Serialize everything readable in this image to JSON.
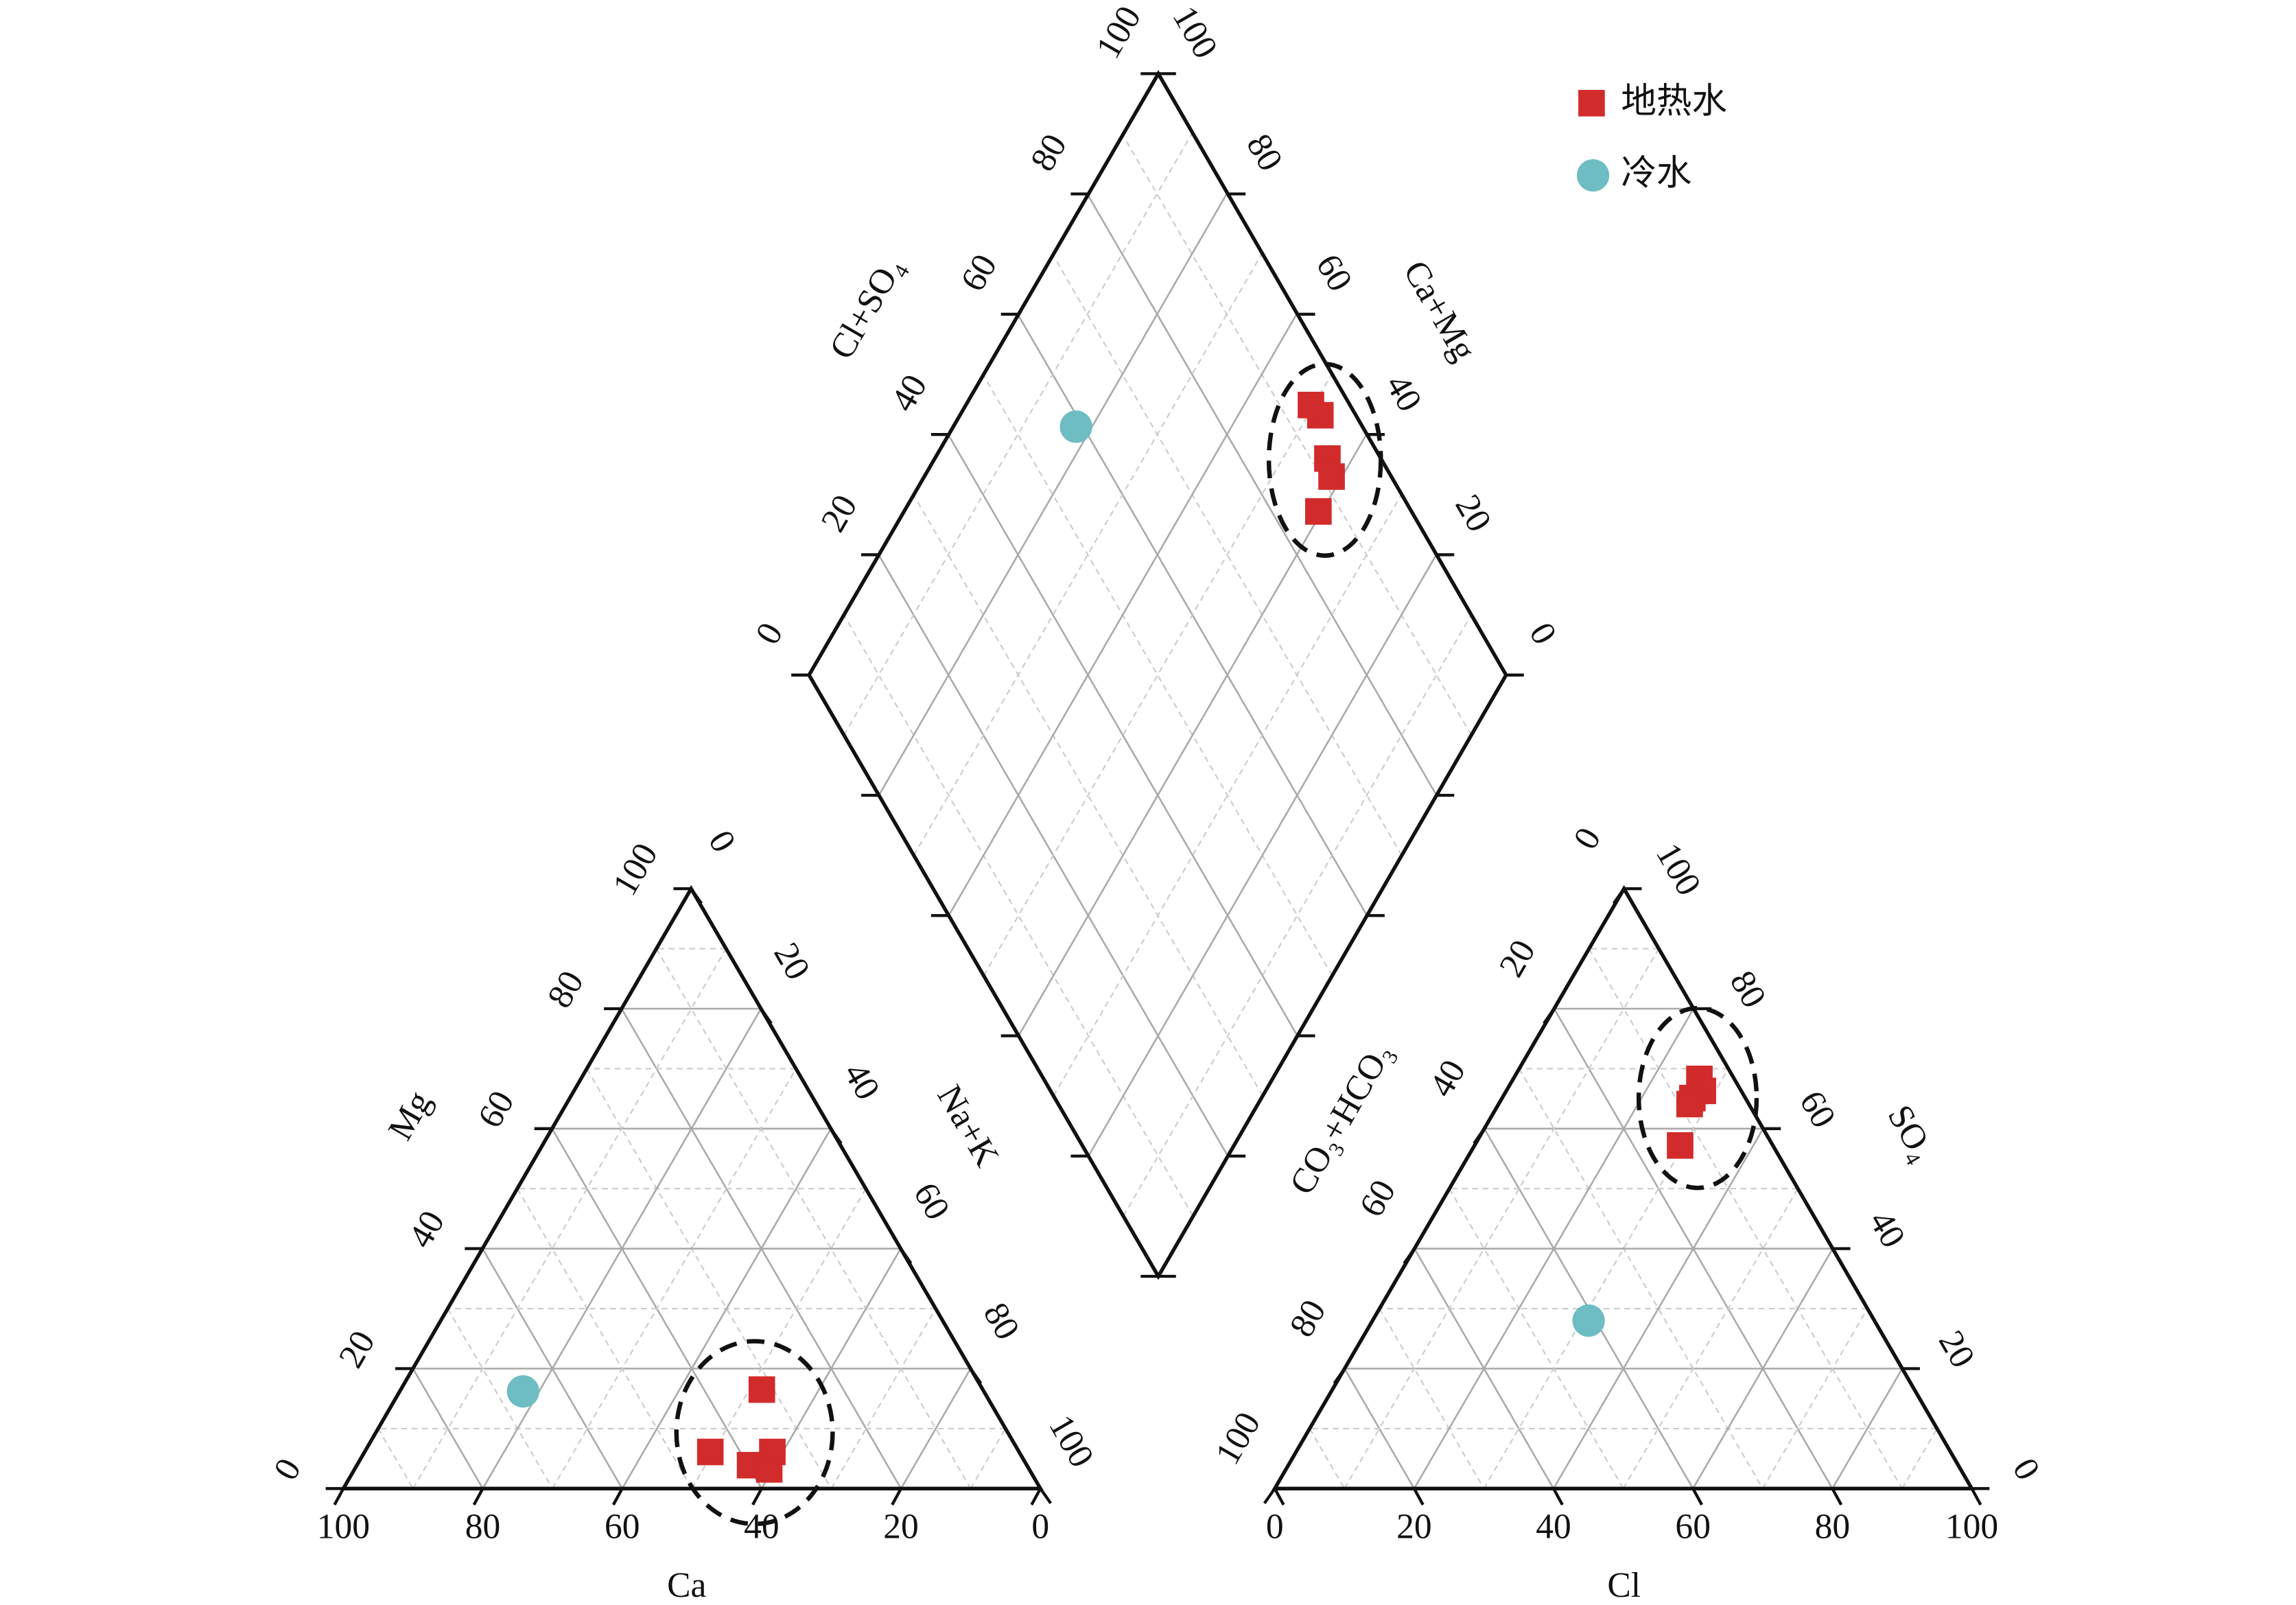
{
  "chart_data": {
    "type": "piper",
    "ticks": [
      0,
      20,
      40,
      60,
      80,
      100
    ],
    "axis_labels": {
      "ca": "Ca",
      "mg": "Mg",
      "nak": "Na+K",
      "cl": "Cl",
      "so4": "SO₄",
      "hco3": "CO₃+HCO₃",
      "clso4": "Cl+SO₄",
      "camg": "Ca+Mg"
    },
    "grid": true,
    "legend": "upper right",
    "series": [
      {
        "name": "地热水",
        "color": "#d22b2b",
        "marker": "square",
        "ca": [
          31.7,
          44.3,
          39.7,
          35.4,
          37.3
        ],
        "mg": [
          16.5,
          6.1,
          3.9,
          6.1,
          3.2
        ],
        "nak": [
          51.8,
          49.6,
          56.4,
          58.5,
          59.5
        ],
        "hco3": [
          5.0,
          5.5,
          7.6,
          8.5,
          13.3
        ],
        "cl": [
          26.7,
          28.2,
          27.3,
          27.4,
          29.5
        ],
        "so4": [
          68.3,
          66.3,
          65.1,
          64.1,
          57.2
        ]
      },
      {
        "name": "冷水",
        "color": "#6dbdc3",
        "marker": "circle",
        "ca": [
          66.1
        ],
        "mg": [
          16.2
        ],
        "nak": [
          17.7
        ],
        "hco3": [
          41.0
        ],
        "cl": [
          31.0
        ],
        "so4": [
          28.0
        ]
      }
    ]
  }
}
